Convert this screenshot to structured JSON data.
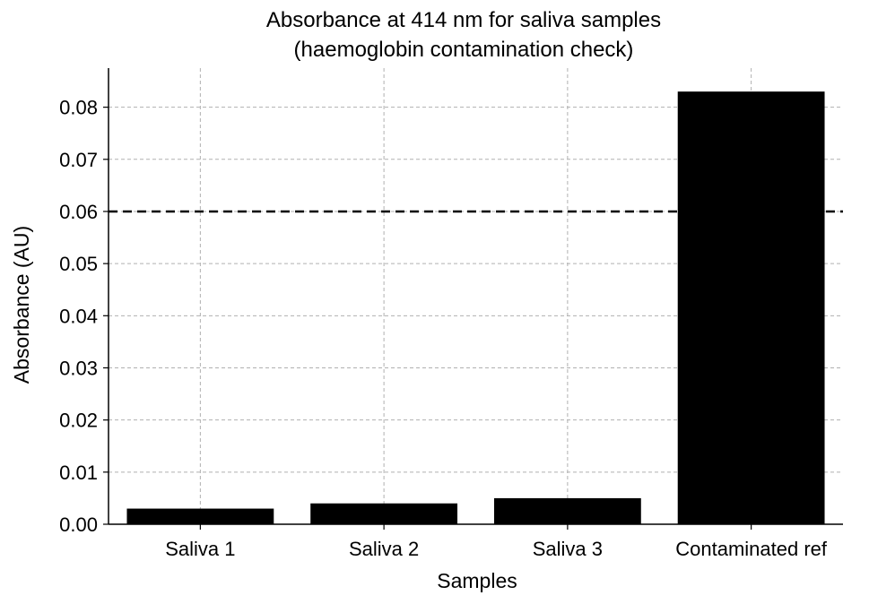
{
  "chart_data": {
    "type": "bar",
    "title_lines": [
      "Absorbance at 414 nm for saliva samples",
      "(haemoglobin contamination check)"
    ],
    "xlabel": "Samples",
    "ylabel": "Absorbance (AU)",
    "categories": [
      "Saliva 1",
      "Saliva 2",
      "Saliva 3",
      "Contaminated ref"
    ],
    "values": [
      0.003,
      0.004,
      0.005,
      0.083
    ],
    "ylim": [
      0,
      0.0875
    ],
    "yticks": [
      0.0,
      0.01,
      0.02,
      0.03,
      0.04,
      0.05,
      0.06,
      0.07,
      0.08
    ],
    "ytick_labels": [
      "0.00",
      "0.01",
      "0.02",
      "0.03",
      "0.04",
      "0.05",
      "0.06",
      "0.07",
      "0.08"
    ],
    "threshold": 0.06,
    "grid": true,
    "bar_color": "#000000",
    "grid_color": "#b0b0b0",
    "threshold_color": "#000000"
  }
}
